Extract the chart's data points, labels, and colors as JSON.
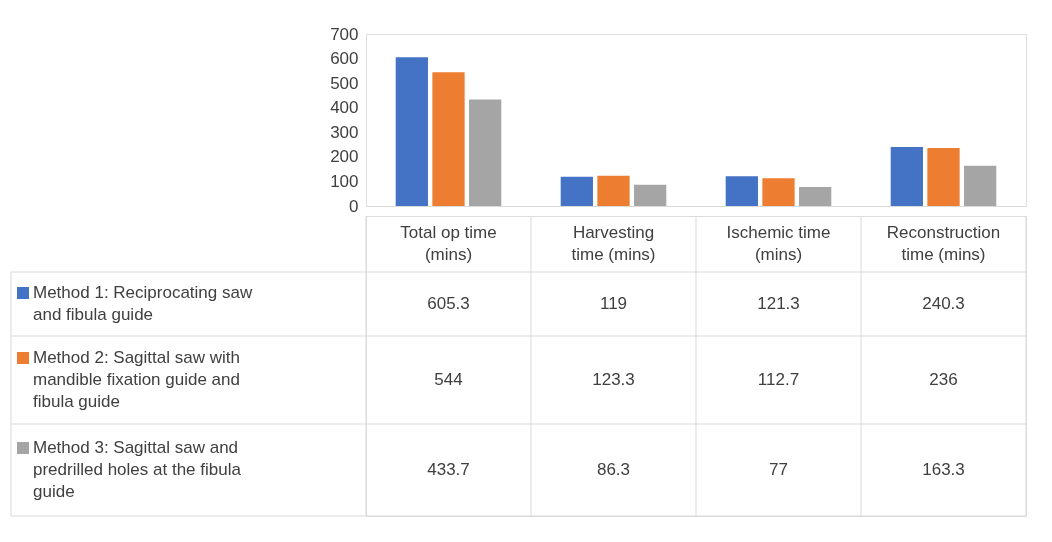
{
  "chart_data": {
    "type": "bar",
    "categories": [
      "Total op time (mins)",
      "Harvesting time (mins)",
      "Ischemic time (mins)",
      "Reconstruction time (mins)"
    ],
    "series": [
      {
        "name": "Method 1: Reciprocating saw and fibula guide",
        "color": "#4472c4",
        "values": [
          605.3,
          119,
          121.3,
          240.3
        ]
      },
      {
        "name": "Method 2: Sagittal saw with mandible fixation guide and fibula guide",
        "color": "#ed7d31",
        "values": [
          544,
          123.3,
          112.7,
          236
        ]
      },
      {
        "name": "Method 3: Sagittal saw and predrilled holes at the fibula guide",
        "color": "#a5a5a5",
        "values": [
          433.7,
          86.3,
          77,
          163.3
        ]
      }
    ],
    "ylim": [
      0,
      700
    ],
    "yticks": [
      0,
      100,
      200,
      300,
      400,
      500,
      600,
      700
    ],
    "grid": false,
    "data_labels": true,
    "legend": "bottom left"
  }
}
